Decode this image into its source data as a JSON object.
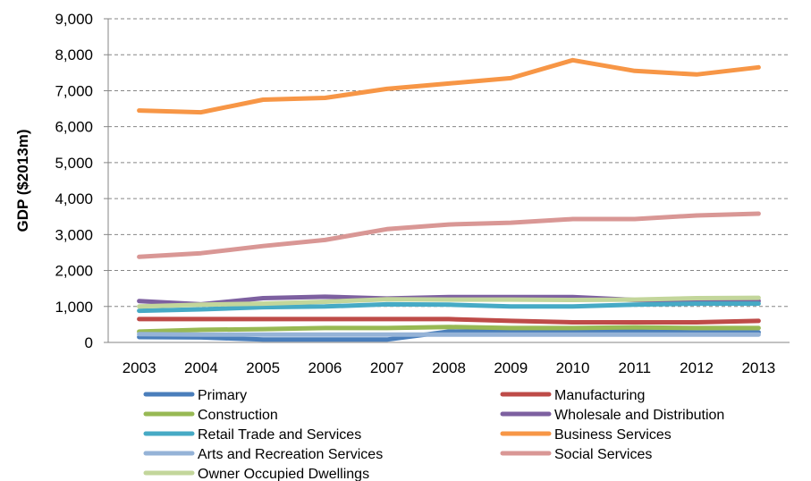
{
  "chart_data": {
    "type": "line",
    "title": "",
    "xlabel": "",
    "ylabel": "GDP ($2013m)",
    "ylim": [
      0,
      9000
    ],
    "yticks": [
      0,
      1000,
      2000,
      3000,
      4000,
      5000,
      6000,
      7000,
      8000,
      9000
    ],
    "ytick_labels": [
      "0",
      "1,000",
      "2,000",
      "3,000",
      "4,000",
      "5,000",
      "6,000",
      "7,000",
      "8,000",
      "9,000"
    ],
    "categories": [
      "2003",
      "2004",
      "2005",
      "2006",
      "2007",
      "2008",
      "2009",
      "2010",
      "2011",
      "2012",
      "2013"
    ],
    "grid": "horizontal dashed",
    "legend_position": "bottom",
    "series": [
      {
        "name": "Primary",
        "color": "#4a7ebb",
        "values": [
          150,
          140,
          80,
          80,
          80,
          300,
          310,
          310,
          300,
          280,
          280
        ]
      },
      {
        "name": "Manufacturing",
        "color": "#be4b48",
        "values": [
          650,
          650,
          650,
          650,
          650,
          650,
          600,
          560,
          560,
          560,
          600
        ]
      },
      {
        "name": "Construction",
        "color": "#98b954",
        "values": [
          300,
          350,
          370,
          400,
          400,
          430,
          400,
          400,
          420,
          400,
          400
        ]
      },
      {
        "name": "Wholesale and Distribution",
        "color": "#7d60a0",
        "values": [
          1150,
          1060,
          1230,
          1270,
          1220,
          1260,
          1260,
          1260,
          1180,
          1150,
          1150
        ]
      },
      {
        "name": "Retail Trade and Services",
        "color": "#46aac5",
        "values": [
          880,
          920,
          980,
          1000,
          1060,
          1050,
          1000,
          1000,
          1050,
          1080,
          1080
        ]
      },
      {
        "name": "Business Services",
        "color": "#f79646",
        "values": [
          6450,
          6400,
          6750,
          6800,
          7050,
          7200,
          7350,
          7850,
          7550,
          7450,
          7650
        ]
      },
      {
        "name": "Arts and Recreation Services",
        "color": "#95b3d7",
        "values": [
          230,
          220,
          220,
          220,
          220,
          220,
          220,
          220,
          220,
          220,
          220
        ]
      },
      {
        "name": "Social Services",
        "color": "#d99795",
        "values": [
          2380,
          2480,
          2680,
          2850,
          3150,
          3280,
          3330,
          3430,
          3430,
          3530,
          3580
        ]
      },
      {
        "name": "Owner Occupied Dwellings",
        "color": "#c3d69b",
        "values": [
          1000,
          1050,
          1080,
          1130,
          1200,
          1190,
          1190,
          1180,
          1190,
          1230,
          1240
        ]
      }
    ]
  }
}
